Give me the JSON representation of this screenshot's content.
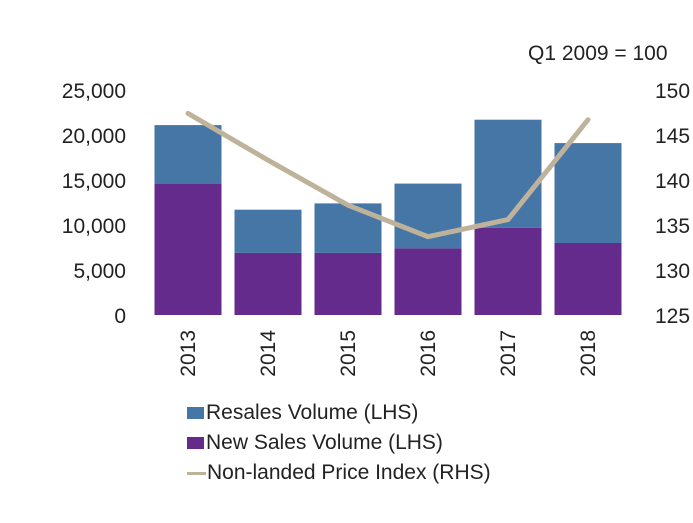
{
  "chart_data": {
    "type": "bar",
    "stacked": true,
    "annotation": "Q1 2009 = 100",
    "categories": [
      "2013",
      "2014",
      "2015",
      "2016",
      "2017",
      "2018"
    ],
    "series": [
      {
        "name": "New Sales Volume (LHS)",
        "type": "bar",
        "axis": "left",
        "color": "#642a8c",
        "values": [
          14600,
          6900,
          6900,
          7400,
          9700,
          8000
        ]
      },
      {
        "name": "Resales Volume (LHS)",
        "type": "bar",
        "axis": "left",
        "color": "#4676a5",
        "values": [
          6500,
          4800,
          5500,
          7200,
          12000,
          11100
        ]
      },
      {
        "name": "Non-landed Price Index (RHS)",
        "type": "line",
        "axis": "right",
        "color": "#bfb29b",
        "values": [
          147.4,
          142.2,
          137.2,
          133.7,
          135.6,
          146.7
        ]
      }
    ],
    "left_axis": {
      "ylim": [
        0,
        25000
      ],
      "ticks": [
        "0",
        "5,000",
        "10,000",
        "15,000",
        "20,000",
        "25,000"
      ]
    },
    "right_axis": {
      "ylim": [
        125,
        150
      ],
      "ticks": [
        "125",
        "130",
        "135",
        "140",
        "145",
        "150"
      ]
    },
    "legend": {
      "position": "bottom",
      "entries": [
        "Resales Volume (LHS)",
        "New Sales Volume (LHS)",
        "Non-landed Price Index (RHS)"
      ]
    },
    "grid": false
  }
}
